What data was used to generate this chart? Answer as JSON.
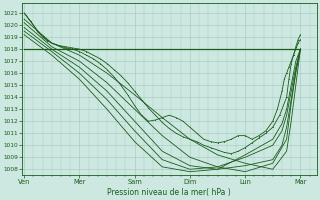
{
  "bg_color": "#cce8e0",
  "grid_color": "#aaccc4",
  "line_color": "#1a5c1a",
  "ylim": [
    1007.5,
    1021.8
  ],
  "yticks": [
    1008,
    1009,
    1010,
    1011,
    1012,
    1013,
    1014,
    1015,
    1016,
    1017,
    1018,
    1019,
    1020,
    1021
  ],
  "xlabel": "Pression niveau de la mer( hPa )",
  "xlabel_color": "#1a5c1a",
  "xtick_labels": [
    "Ven",
    "Mer",
    "Sam",
    "Dim",
    "Lun",
    "Mar"
  ],
  "xtick_positions": [
    0,
    24,
    48,
    72,
    96,
    120
  ],
  "xlim": [
    -1,
    127
  ],
  "figsize": [
    3.2,
    2.0
  ],
  "dpi": 100,
  "series": [
    {
      "x": [
        0,
        120
      ],
      "y": [
        1018.0,
        1018.0
      ],
      "marker": false,
      "lw": 0.9,
      "ms": 0
    },
    {
      "x": [
        0,
        1,
        2,
        3,
        4,
        5,
        6,
        8,
        10,
        12,
        15,
        18,
        21,
        24,
        27,
        30,
        33,
        36,
        39,
        42,
        45,
        48,
        51,
        54,
        57,
        60,
        63,
        66,
        69,
        72,
        75,
        78,
        81,
        84,
        87,
        90,
        93,
        96,
        99,
        102,
        105,
        108,
        111,
        114,
        115,
        116,
        117,
        118,
        119,
        120
      ],
      "y": [
        1021.0,
        1020.8,
        1020.5,
        1020.3,
        1020.0,
        1019.7,
        1019.4,
        1019.1,
        1018.8,
        1018.5,
        1018.3,
        1018.2,
        1018.1,
        1018.0,
        1017.8,
        1017.5,
        1017.2,
        1016.8,
        1016.3,
        1015.8,
        1015.2,
        1014.5,
        1013.8,
        1013.1,
        1012.5,
        1011.9,
        1011.4,
        1011.0,
        1010.7,
        1010.5,
        1010.3,
        1010.0,
        1009.8,
        1009.6,
        1009.4,
        1009.3,
        1009.5,
        1009.8,
        1010.2,
        1010.6,
        1011.0,
        1011.5,
        1012.5,
        1014.0,
        1015.5,
        1016.8,
        1017.5,
        1018.2,
        1018.8,
        1019.2
      ],
      "marker": true,
      "lw": 0.6,
      "ms": 1.5
    },
    {
      "x": [
        0,
        12,
        24,
        36,
        48,
        60,
        72,
        84,
        96,
        108,
        114,
        116,
        118,
        120
      ],
      "y": [
        1020.5,
        1018.5,
        1017.5,
        1016.0,
        1014.2,
        1012.3,
        1010.5,
        1009.2,
        1008.5,
        1008.0,
        1009.5,
        1012.0,
        1015.0,
        1018.0
      ],
      "marker": false,
      "lw": 0.6,
      "ms": 0
    },
    {
      "x": [
        0,
        12,
        24,
        36,
        48,
        60,
        72,
        84,
        96,
        108,
        114,
        116,
        118,
        120
      ],
      "y": [
        1020.2,
        1018.2,
        1017.0,
        1015.2,
        1013.0,
        1010.8,
        1009.0,
        1008.2,
        1007.8,
        1008.5,
        1010.5,
        1013.5,
        1016.0,
        1018.0
      ],
      "marker": false,
      "lw": 0.6,
      "ms": 0
    },
    {
      "x": [
        0,
        12,
        24,
        36,
        48,
        60,
        72,
        84,
        96,
        108,
        112,
        114,
        116,
        118,
        120
      ],
      "y": [
        1019.8,
        1018.0,
        1016.5,
        1014.5,
        1012.0,
        1009.5,
        1008.3,
        1008.0,
        1008.3,
        1008.8,
        1010.0,
        1011.5,
        1013.8,
        1016.2,
        1018.0
      ],
      "marker": false,
      "lw": 0.6,
      "ms": 0
    },
    {
      "x": [
        0,
        12,
        24,
        36,
        48,
        60,
        72,
        84,
        96,
        108,
        112,
        114,
        116,
        118,
        120
      ],
      "y": [
        1019.5,
        1017.8,
        1016.0,
        1013.8,
        1011.2,
        1008.8,
        1008.0,
        1008.2,
        1009.0,
        1010.0,
        1011.2,
        1012.5,
        1014.5,
        1016.5,
        1018.0
      ],
      "marker": false,
      "lw": 0.6,
      "ms": 0
    },
    {
      "x": [
        0,
        12,
        24,
        36,
        48,
        60,
        72,
        84,
        96,
        108,
        112,
        114,
        116,
        118,
        120
      ],
      "y": [
        1019.2,
        1017.5,
        1015.5,
        1013.0,
        1010.3,
        1008.2,
        1007.8,
        1008.0,
        1009.2,
        1010.5,
        1011.8,
        1013.0,
        1015.0,
        1017.0,
        1018.0
      ],
      "marker": false,
      "lw": 0.6,
      "ms": 0
    },
    {
      "x": [
        0,
        2,
        4,
        6,
        8,
        10,
        12,
        15,
        18,
        21,
        24,
        27,
        30,
        33,
        36,
        39,
        42,
        45,
        48,
        51,
        54,
        57,
        60,
        63,
        66,
        69,
        72,
        75,
        78,
        81,
        84,
        87,
        90,
        93,
        96,
        99,
        102,
        105,
        108,
        110,
        112,
        113,
        114,
        115,
        116,
        117,
        118,
        119,
        120
      ],
      "y": [
        1021.0,
        1020.5,
        1020.0,
        1019.5,
        1019.0,
        1018.7,
        1018.5,
        1018.3,
        1018.1,
        1018.0,
        1017.8,
        1017.5,
        1017.2,
        1016.8,
        1016.3,
        1015.7,
        1015.0,
        1014.2,
        1013.3,
        1012.5,
        1012.0,
        1012.1,
        1012.3,
        1012.5,
        1012.3,
        1012.0,
        1011.5,
        1011.0,
        1010.5,
        1010.3,
        1010.2,
        1010.3,
        1010.5,
        1010.8,
        1010.8,
        1010.5,
        1010.8,
        1011.2,
        1012.0,
        1013.0,
        1014.5,
        1015.5,
        1016.0,
        1016.5,
        1017.0,
        1017.5,
        1018.0,
        1018.5,
        1018.8
      ],
      "marker": true,
      "lw": 0.6,
      "ms": 1.5
    }
  ],
  "minor_xtick_interval": 4
}
